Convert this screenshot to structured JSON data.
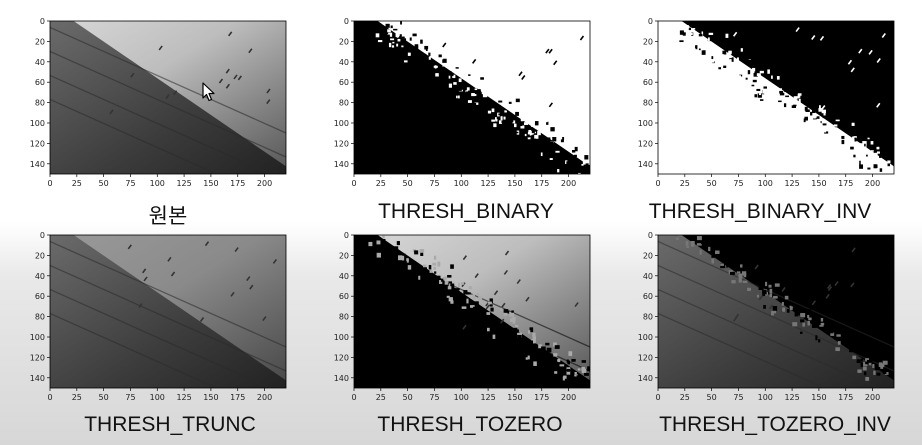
{
  "panels": [
    {
      "key": "original",
      "caption": "원본",
      "mode": "orig"
    },
    {
      "key": "binary",
      "caption": "THRESH_BINARY",
      "mode": "bin"
    },
    {
      "key": "binary_inv",
      "caption": "THRESH_BINARY_INV",
      "mode": "bininv"
    },
    {
      "key": "trunc",
      "caption": "THRESH_TRUNC",
      "mode": "trunc"
    },
    {
      "key": "tozero",
      "caption": "THRESH_TOZERO",
      "mode": "tozero"
    },
    {
      "key": "tozero_inv",
      "caption": "THRESH_TOZERO_INV",
      "mode": "tozeroinv"
    }
  ],
  "axes": {
    "x_ticks": [
      "0",
      "25",
      "50",
      "75",
      "100",
      "125",
      "150",
      "175",
      "200"
    ],
    "y_ticks": [
      "0",
      "20",
      "40",
      "60",
      "80",
      "100",
      "120",
      "140"
    ]
  }
}
